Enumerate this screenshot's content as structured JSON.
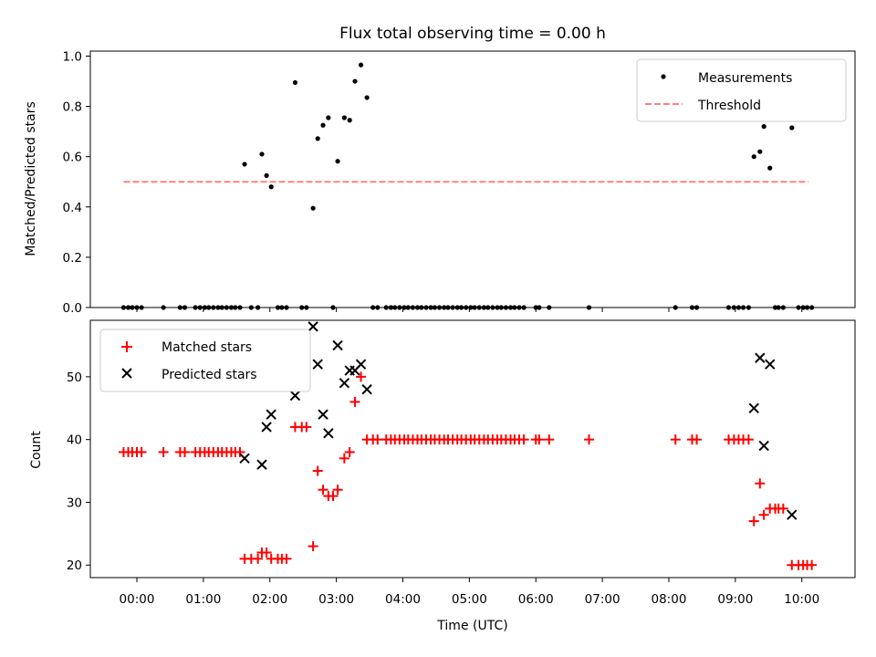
{
  "chart_data": [
    {
      "type": "scatter",
      "title": "Flux total observing time = 0.00 h",
      "xlabel": "",
      "ylabel": "Matched/Predicted stars",
      "ylim": [
        0,
        1.02
      ],
      "yticks": [
        "0.0",
        "0.2",
        "0.4",
        "0.6",
        "0.8",
        "1.0"
      ],
      "ytick_values": [
        0,
        0.2,
        0.4,
        0.6,
        0.8,
        1.0
      ],
      "legend": {
        "placement": "upper right",
        "entries": [
          "Measurements",
          "Threshold"
        ]
      },
      "colors": {
        "measurements": "#000000",
        "threshold": "#ff8080"
      },
      "threshold": {
        "name": "Threshold",
        "value": 0.5,
        "x_range": [
          -0.2,
          10.1
        ]
      },
      "series": [
        {
          "name": "Measurements",
          "points": [
            [
              -0.2,
              0
            ],
            [
              -0.13,
              0
            ],
            [
              -0.07,
              0
            ],
            [
              0.0,
              0
            ],
            [
              0.07,
              0
            ],
            [
              0.4,
              0
            ],
            [
              0.65,
              0
            ],
            [
              0.72,
              0
            ],
            [
              0.88,
              0
            ],
            [
              0.95,
              0
            ],
            [
              1.02,
              0
            ],
            [
              1.08,
              0
            ],
            [
              1.15,
              0
            ],
            [
              1.22,
              0
            ],
            [
              1.28,
              0
            ],
            [
              1.35,
              0
            ],
            [
              1.42,
              0
            ],
            [
              1.48,
              0
            ],
            [
              1.55,
              0
            ],
            [
              1.62,
              0.57
            ],
            [
              1.72,
              0
            ],
            [
              1.82,
              0
            ],
            [
              1.88,
              0.61
            ],
            [
              1.95,
              0.525
            ],
            [
              2.02,
              0.48
            ],
            [
              2.12,
              0
            ],
            [
              2.18,
              0
            ],
            [
              2.25,
              0
            ],
            [
              2.38,
              0.895
            ],
            [
              2.48,
              0
            ],
            [
              2.55,
              0
            ],
            [
              2.65,
              0.395
            ],
            [
              2.72,
              0.672
            ],
            [
              2.8,
              0.725
            ],
            [
              2.88,
              0.755
            ],
            [
              2.95,
              0
            ],
            [
              3.02,
              0.582
            ],
            [
              3.12,
              0.755
            ],
            [
              3.2,
              0.745
            ],
            [
              3.28,
              0.9
            ],
            [
              3.37,
              0.965
            ],
            [
              3.46,
              0.835
            ],
            [
              3.55,
              0
            ],
            [
              3.62,
              0
            ],
            [
              3.75,
              0
            ],
            [
              3.82,
              0
            ],
            [
              3.88,
              0
            ],
            [
              3.95,
              0
            ],
            [
              4.02,
              0
            ],
            [
              4.08,
              0
            ],
            [
              4.15,
              0
            ],
            [
              4.22,
              0
            ],
            [
              4.28,
              0
            ],
            [
              4.35,
              0
            ],
            [
              4.42,
              0
            ],
            [
              4.48,
              0
            ],
            [
              4.55,
              0
            ],
            [
              4.62,
              0
            ],
            [
              4.68,
              0
            ],
            [
              4.75,
              0
            ],
            [
              4.82,
              0
            ],
            [
              4.88,
              0
            ],
            [
              4.95,
              0
            ],
            [
              5.02,
              0
            ],
            [
              5.08,
              0
            ],
            [
              5.15,
              0
            ],
            [
              5.22,
              0
            ],
            [
              5.28,
              0
            ],
            [
              5.35,
              0
            ],
            [
              5.42,
              0
            ],
            [
              5.48,
              0
            ],
            [
              5.55,
              0
            ],
            [
              5.62,
              0
            ],
            [
              5.68,
              0
            ],
            [
              5.75,
              0
            ],
            [
              5.82,
              0
            ],
            [
              6.0,
              0
            ],
            [
              6.05,
              0
            ],
            [
              6.2,
              0
            ],
            [
              6.8,
              0
            ],
            [
              8.1,
              0
            ],
            [
              8.35,
              0
            ],
            [
              8.42,
              0
            ],
            [
              8.9,
              0
            ],
            [
              8.98,
              0
            ],
            [
              9.05,
              0
            ],
            [
              9.12,
              0
            ],
            [
              9.2,
              0
            ],
            [
              9.28,
              0.6
            ],
            [
              9.37,
              0.62
            ],
            [
              9.43,
              0.72
            ],
            [
              9.52,
              0.555
            ],
            [
              9.6,
              0
            ],
            [
              9.65,
              0
            ],
            [
              9.72,
              0
            ],
            [
              9.85,
              0.715
            ],
            [
              9.95,
              0
            ],
            [
              10.02,
              0
            ],
            [
              10.08,
              0
            ],
            [
              10.15,
              0
            ]
          ]
        }
      ]
    },
    {
      "type": "scatter",
      "title": "",
      "xlabel": "Time (UTC)",
      "ylabel": "Count",
      "ylim": [
        18,
        59
      ],
      "xlim": [
        -0.7,
        10.8
      ],
      "yticks": [
        "20",
        "30",
        "40",
        "50"
      ],
      "ytick_values": [
        20,
        30,
        40,
        50
      ],
      "xticks": [
        "00:00",
        "01:00",
        "02:00",
        "03:00",
        "04:00",
        "05:00",
        "06:00",
        "07:00",
        "08:00",
        "09:00",
        "10:00"
      ],
      "xtick_values": [
        0,
        1,
        2,
        3,
        4,
        5,
        6,
        7,
        8,
        9,
        10
      ],
      "legend": {
        "placement": "upper left",
        "entries": [
          "Matched stars",
          "Predicted stars"
        ]
      },
      "colors": {
        "matched": "#ff0000",
        "predicted": "#000000"
      },
      "series": [
        {
          "name": "Matched stars",
          "points": [
            [
              -0.2,
              38
            ],
            [
              -0.13,
              38
            ],
            [
              -0.07,
              38
            ],
            [
              0.0,
              38
            ],
            [
              0.07,
              38
            ],
            [
              0.4,
              38
            ],
            [
              0.65,
              38
            ],
            [
              0.72,
              38
            ],
            [
              0.88,
              38
            ],
            [
              0.95,
              38
            ],
            [
              1.02,
              38
            ],
            [
              1.08,
              38
            ],
            [
              1.15,
              38
            ],
            [
              1.22,
              38
            ],
            [
              1.28,
              38
            ],
            [
              1.35,
              38
            ],
            [
              1.42,
              38
            ],
            [
              1.48,
              38
            ],
            [
              1.55,
              38
            ],
            [
              1.62,
              21
            ],
            [
              1.72,
              21
            ],
            [
              1.82,
              21
            ],
            [
              1.88,
              22
            ],
            [
              1.95,
              22
            ],
            [
              2.02,
              21
            ],
            [
              2.12,
              21
            ],
            [
              2.18,
              21
            ],
            [
              2.25,
              21
            ],
            [
              2.38,
              42
            ],
            [
              2.48,
              42
            ],
            [
              2.55,
              42
            ],
            [
              2.65,
              23
            ],
            [
              2.72,
              35
            ],
            [
              2.8,
              32
            ],
            [
              2.88,
              31
            ],
            [
              2.95,
              31
            ],
            [
              3.02,
              32
            ],
            [
              3.12,
              37
            ],
            [
              3.2,
              38
            ],
            [
              3.28,
              46
            ],
            [
              3.37,
              50
            ],
            [
              3.46,
              40
            ],
            [
              3.55,
              40
            ],
            [
              3.62,
              40
            ],
            [
              3.75,
              40
            ],
            [
              3.82,
              40
            ],
            [
              3.88,
              40
            ],
            [
              3.95,
              40
            ],
            [
              4.02,
              40
            ],
            [
              4.08,
              40
            ],
            [
              4.15,
              40
            ],
            [
              4.22,
              40
            ],
            [
              4.28,
              40
            ],
            [
              4.35,
              40
            ],
            [
              4.42,
              40
            ],
            [
              4.48,
              40
            ],
            [
              4.55,
              40
            ],
            [
              4.62,
              40
            ],
            [
              4.68,
              40
            ],
            [
              4.75,
              40
            ],
            [
              4.82,
              40
            ],
            [
              4.88,
              40
            ],
            [
              4.95,
              40
            ],
            [
              5.02,
              40
            ],
            [
              5.08,
              40
            ],
            [
              5.15,
              40
            ],
            [
              5.22,
              40
            ],
            [
              5.28,
              40
            ],
            [
              5.35,
              40
            ],
            [
              5.42,
              40
            ],
            [
              5.48,
              40
            ],
            [
              5.55,
              40
            ],
            [
              5.62,
              40
            ],
            [
              5.68,
              40
            ],
            [
              5.75,
              40
            ],
            [
              5.82,
              40
            ],
            [
              6.0,
              40
            ],
            [
              6.05,
              40
            ],
            [
              6.2,
              40
            ],
            [
              6.8,
              40
            ],
            [
              8.1,
              40
            ],
            [
              8.35,
              40
            ],
            [
              8.42,
              40
            ],
            [
              8.9,
              40
            ],
            [
              8.98,
              40
            ],
            [
              9.05,
              40
            ],
            [
              9.12,
              40
            ],
            [
              9.2,
              40
            ],
            [
              9.28,
              27
            ],
            [
              9.37,
              33
            ],
            [
              9.43,
              28
            ],
            [
              9.52,
              29
            ],
            [
              9.6,
              29
            ],
            [
              9.65,
              29
            ],
            [
              9.72,
              29
            ],
            [
              9.85,
              20
            ],
            [
              9.95,
              20
            ],
            [
              10.02,
              20
            ],
            [
              10.08,
              20
            ],
            [
              10.15,
              20
            ]
          ]
        },
        {
          "name": "Predicted stars",
          "points": [
            [
              1.62,
              37
            ],
            [
              1.88,
              36
            ],
            [
              1.95,
              42
            ],
            [
              2.02,
              44
            ],
            [
              2.38,
              47
            ],
            [
              2.65,
              58
            ],
            [
              2.72,
              52
            ],
            [
              2.8,
              44
            ],
            [
              2.88,
              41
            ],
            [
              3.02,
              55
            ],
            [
              3.12,
              49
            ],
            [
              3.2,
              51
            ],
            [
              3.28,
              51
            ],
            [
              3.37,
              52
            ],
            [
              3.46,
              48
            ],
            [
              9.28,
              45
            ],
            [
              9.37,
              53
            ],
            [
              9.43,
              39
            ],
            [
              9.52,
              52
            ],
            [
              9.85,
              28
            ]
          ]
        }
      ]
    }
  ]
}
